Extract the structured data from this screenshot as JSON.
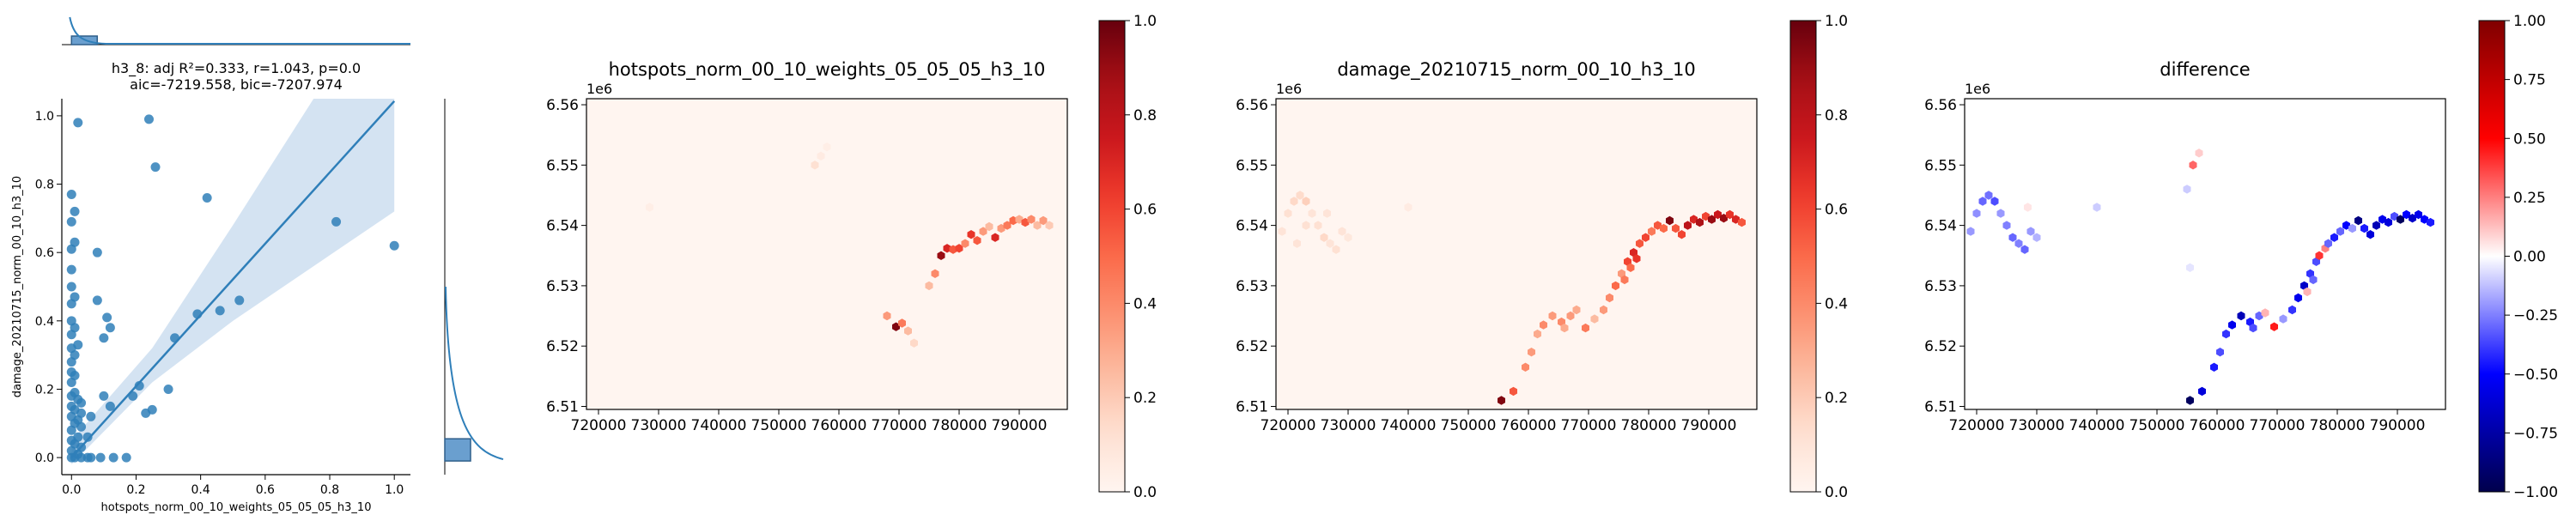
{
  "chart_data": [
    {
      "type": "scatter",
      "title": "h3_8: adj R²=0.333, r=1.043, p=0.0",
      "subtitle": "aic=-7219.558, bic=-7207.974",
      "xlabel": "hotspots_norm_00_10_weights_05_05_05_h3_10",
      "ylabel": "damage_20210715_norm_00_10_h3_10",
      "xlim": [
        -0.03,
        1.05
      ],
      "ylim": [
        -0.05,
        1.05
      ],
      "xticks": [
        "0.0",
        "0.2",
        "0.4",
        "0.6",
        "0.8",
        "1.0"
      ],
      "xtick_values": [
        0,
        0.2,
        0.4,
        0.6,
        0.8,
        1.0
      ],
      "yticks": [
        "0.0",
        "0.2",
        "0.4",
        "0.6",
        "0.8",
        "1.0"
      ],
      "ytick_values": [
        0,
        0.2,
        0.4,
        0.6,
        0.8,
        1.0
      ],
      "color": "#2f7fb9",
      "points": [
        [
          0.0,
          0.0
        ],
        [
          0.0,
          0.02
        ],
        [
          0.0,
          0.05
        ],
        [
          0.0,
          0.08
        ],
        [
          0.0,
          0.12
        ],
        [
          0.0,
          0.15
        ],
        [
          0.0,
          0.18
        ],
        [
          0.0,
          0.22
        ],
        [
          0.0,
          0.25
        ],
        [
          0.0,
          0.28
        ],
        [
          0.0,
          0.32
        ],
        [
          0.0,
          0.36
        ],
        [
          0.0,
          0.4
        ],
        [
          0.0,
          0.45
        ],
        [
          0.0,
          0.5
        ],
        [
          0.0,
          0.55
        ],
        [
          0.0,
          0.61
        ],
        [
          0.0,
          0.69
        ],
        [
          0.0,
          0.77
        ],
        [
          0.01,
          0.0
        ],
        [
          0.01,
          0.04
        ],
        [
          0.01,
          0.1
        ],
        [
          0.01,
          0.14
        ],
        [
          0.01,
          0.19
        ],
        [
          0.01,
          0.24
        ],
        [
          0.01,
          0.3
        ],
        [
          0.01,
          0.38
        ],
        [
          0.01,
          0.47
        ],
        [
          0.01,
          0.63
        ],
        [
          0.01,
          0.72
        ],
        [
          0.02,
          0.01
        ],
        [
          0.02,
          0.06
        ],
        [
          0.02,
          0.11
        ],
        [
          0.02,
          0.17
        ],
        [
          0.02,
          0.33
        ],
        [
          0.02,
          0.98
        ],
        [
          0.03,
          0.0
        ],
        [
          0.03,
          0.03
        ],
        [
          0.03,
          0.09
        ],
        [
          0.03,
          0.13
        ],
        [
          0.03,
          0.16
        ],
        [
          0.05,
          0.0
        ],
        [
          0.05,
          0.06
        ],
        [
          0.06,
          0.12
        ],
        [
          0.06,
          0.0
        ],
        [
          0.08,
          0.6
        ],
        [
          0.08,
          0.46
        ],
        [
          0.09,
          0.0
        ],
        [
          0.1,
          0.35
        ],
        [
          0.1,
          0.18
        ],
        [
          0.11,
          0.41
        ],
        [
          0.12,
          0.38
        ],
        [
          0.12,
          0.15
        ],
        [
          0.13,
          0.0
        ],
        [
          0.17,
          0.0
        ],
        [
          0.19,
          0.18
        ],
        [
          0.21,
          0.21
        ],
        [
          0.23,
          0.13
        ],
        [
          0.24,
          0.99
        ],
        [
          0.25,
          0.14
        ],
        [
          0.26,
          0.85
        ],
        [
          0.3,
          0.2
        ],
        [
          0.32,
          0.35
        ],
        [
          0.39,
          0.42
        ],
        [
          0.42,
          0.76
        ],
        [
          0.46,
          0.43
        ],
        [
          0.52,
          0.46
        ],
        [
          0.82,
          0.69
        ],
        [
          1.0,
          0.62
        ]
      ],
      "regression": {
        "intercept": 0.0,
        "slope": 1.043,
        "x_range": [
          0.0,
          1.0
        ]
      },
      "ci_band": [
        [
          0.0,
          -0.02,
          0.05
        ],
        [
          0.25,
          0.22,
          0.32
        ],
        [
          0.5,
          0.4,
          0.68
        ],
        [
          0.75,
          0.56,
          1.05
        ],
        [
          1.0,
          0.72,
          1.4
        ]
      ],
      "marginal_top": {
        "type": "histogram",
        "note": "distribution of x, concentrated at 0"
      },
      "marginal_right": {
        "type": "histogram",
        "note": "distribution of y, concentrated at 0"
      }
    },
    {
      "type": "heatmap",
      "kind": "hexbin-map",
      "title": "hotspots_norm_00_10_weights_05_05_05_h3_10",
      "offset_label": "1e6",
      "xticks": [
        "720000",
        "730000",
        "740000",
        "750000",
        "760000",
        "770000",
        "780000",
        "790000"
      ],
      "xtick_values": [
        720000,
        730000,
        740000,
        750000,
        760000,
        770000,
        780000,
        790000
      ],
      "yticks": [
        "6.51",
        "6.52",
        "6.53",
        "6.54",
        "6.55",
        "6.56"
      ],
      "ytick_values": [
        6.51,
        6.52,
        6.53,
        6.54,
        6.55,
        6.56
      ],
      "xlim": [
        718000,
        798000
      ],
      "ylim": [
        6.5095,
        6.561
      ],
      "colormap": "Reds",
      "vmin": 0.0,
      "vmax": 1.0,
      "colorbar_ticks": [
        "0.0",
        "0.2",
        "0.4",
        "0.6",
        "0.8",
        "1.0"
      ],
      "colorbar_values": [
        0.0,
        0.2,
        0.4,
        0.6,
        0.8,
        1.0
      ],
      "cells": [
        [
          728500,
          6.543,
          0.04
        ],
        [
          756000,
          6.55,
          0.12
        ],
        [
          757000,
          6.5515,
          0.06
        ],
        [
          758000,
          6.553,
          0.04
        ],
        [
          768000,
          6.525,
          0.35
        ],
        [
          769500,
          6.5232,
          0.95
        ],
        [
          770500,
          6.5238,
          0.45
        ],
        [
          771500,
          6.5225,
          0.25
        ],
        [
          772500,
          6.5205,
          0.15
        ],
        [
          775000,
          6.53,
          0.25
        ],
        [
          776000,
          6.532,
          0.4
        ],
        [
          777000,
          6.535,
          0.9
        ],
        [
          778000,
          6.5362,
          0.7
        ],
        [
          779000,
          6.536,
          0.55
        ],
        [
          780000,
          6.5362,
          0.6
        ],
        [
          781000,
          6.537,
          0.4
        ],
        [
          782000,
          6.5385,
          0.65
        ],
        [
          783000,
          6.5375,
          0.55
        ],
        [
          784000,
          6.539,
          0.35
        ],
        [
          785000,
          6.5398,
          0.25
        ],
        [
          786000,
          6.538,
          0.7
        ],
        [
          787000,
          6.5395,
          0.35
        ],
        [
          788000,
          6.54,
          0.45
        ],
        [
          789000,
          6.5408,
          0.5
        ],
        [
          790000,
          6.541,
          0.3
        ],
        [
          791000,
          6.5405,
          0.55
        ],
        [
          792000,
          6.541,
          0.4
        ],
        [
          793000,
          6.54,
          0.25
        ],
        [
          794000,
          6.5408,
          0.35
        ],
        [
          795000,
          6.54,
          0.2
        ]
      ]
    },
    {
      "type": "heatmap",
      "kind": "hexbin-map",
      "title": "damage_20210715_norm_00_10_h3_10",
      "offset_label": "1e6",
      "xticks": [
        "720000",
        "730000",
        "740000",
        "750000",
        "760000",
        "770000",
        "780000",
        "790000"
      ],
      "xtick_values": [
        720000,
        730000,
        740000,
        750000,
        760000,
        770000,
        780000,
        790000
      ],
      "yticks": [
        "6.51",
        "6.52",
        "6.53",
        "6.54",
        "6.55",
        "6.56"
      ],
      "ytick_values": [
        6.51,
        6.52,
        6.53,
        6.54,
        6.55,
        6.56
      ],
      "xlim": [
        718000,
        798000
      ],
      "ylim": [
        6.5095,
        6.561
      ],
      "colormap": "Reds",
      "vmin": 0.0,
      "vmax": 1.0,
      "colorbar_ticks": [
        "0.0",
        "0.2",
        "0.4",
        "0.6",
        "0.8",
        "1.0"
      ],
      "colorbar_values": [
        0.0,
        0.2,
        0.4,
        0.6,
        0.8,
        1.0
      ],
      "cells": [
        [
          719000,
          6.539,
          0.1
        ],
        [
          720000,
          6.542,
          0.12
        ],
        [
          721000,
          6.544,
          0.15
        ],
        [
          722000,
          6.545,
          0.14
        ],
        [
          723000,
          6.544,
          0.18
        ],
        [
          724000,
          6.542,
          0.1
        ],
        [
          725000,
          6.54,
          0.12
        ],
        [
          726000,
          6.538,
          0.15
        ],
        [
          727000,
          6.537,
          0.1
        ],
        [
          728000,
          6.536,
          0.12
        ],
        [
          729000,
          6.539,
          0.1
        ],
        [
          730000,
          6.538,
          0.08
        ],
        [
          721500,
          6.537,
          0.1
        ],
        [
          723000,
          6.54,
          0.12
        ],
        [
          726500,
          6.542,
          0.1
        ],
        [
          740000,
          6.543,
          0.06
        ],
        [
          755500,
          6.511,
          0.95
        ],
        [
          757500,
          6.5125,
          0.55
        ],
        [
          759500,
          6.5165,
          0.4
        ],
        [
          760500,
          6.519,
          0.35
        ],
        [
          761500,
          6.522,
          0.3
        ],
        [
          762500,
          6.5235,
          0.4
        ],
        [
          764000,
          6.525,
          0.35
        ],
        [
          765500,
          6.524,
          0.4
        ],
        [
          767000,
          6.525,
          0.35
        ],
        [
          769500,
          6.523,
          0.45
        ],
        [
          771000,
          6.5245,
          0.25
        ],
        [
          772500,
          6.526,
          0.35
        ],
        [
          773500,
          6.528,
          0.4
        ],
        [
          774500,
          6.53,
          0.5
        ],
        [
          775500,
          6.532,
          0.35
        ],
        [
          776500,
          6.534,
          0.6
        ],
        [
          777500,
          6.5355,
          0.7
        ],
        [
          778500,
          6.537,
          0.55
        ],
        [
          779500,
          6.538,
          0.6
        ],
        [
          780500,
          6.539,
          0.45
        ],
        [
          781500,
          6.54,
          0.55
        ],
        [
          782500,
          6.5395,
          0.5
        ],
        [
          783500,
          6.5408,
          0.95
        ],
        [
          784500,
          6.5395,
          0.55
        ],
        [
          785500,
          6.5385,
          0.6
        ],
        [
          786500,
          6.54,
          0.8
        ],
        [
          787500,
          6.541,
          0.7
        ],
        [
          788500,
          6.5405,
          0.85
        ],
        [
          789500,
          6.5415,
          0.6
        ],
        [
          790500,
          6.541,
          0.9
        ],
        [
          791500,
          6.5418,
          0.75
        ],
        [
          792500,
          6.5412,
          0.9
        ],
        [
          793500,
          6.5418,
          0.65
        ],
        [
          794500,
          6.541,
          0.7
        ],
        [
          795500,
          6.5405,
          0.55
        ],
        [
          777000,
          6.533,
          0.5
        ],
        [
          776000,
          6.531,
          0.45
        ],
        [
          778000,
          6.5345,
          0.65
        ],
        [
          768000,
          6.526,
          0.3
        ],
        [
          766000,
          6.523,
          0.3
        ]
      ]
    },
    {
      "type": "heatmap",
      "kind": "hexbin-map",
      "title": "difference",
      "offset_label": "1e6",
      "xticks": [
        "720000",
        "730000",
        "740000",
        "750000",
        "760000",
        "770000",
        "780000",
        "790000"
      ],
      "xtick_values": [
        720000,
        730000,
        740000,
        750000,
        760000,
        770000,
        780000,
        790000
      ],
      "yticks": [
        "6.51",
        "6.52",
        "6.53",
        "6.54",
        "6.55",
        "6.56"
      ],
      "ytick_values": [
        6.51,
        6.52,
        6.53,
        6.54,
        6.55,
        6.56
      ],
      "xlim": [
        718000,
        798000
      ],
      "ylim": [
        6.5095,
        6.561
      ],
      "colormap": "seismic",
      "vmin": -1.0,
      "vmax": 1.0,
      "colorbar_ticks": [
        "1.00",
        "0.75",
        "0.50",
        "0.25",
        "0.00",
        "−0.25",
        "−0.50",
        "−0.75",
        "−1.00"
      ],
      "colorbar_values": [
        1.0,
        0.75,
        0.5,
        0.25,
        0.0,
        -0.25,
        -0.5,
        -0.75,
        -1.0
      ],
      "cells": [
        [
          719000,
          6.539,
          -0.2
        ],
        [
          720000,
          6.542,
          -0.22
        ],
        [
          721000,
          6.544,
          -0.3
        ],
        [
          722000,
          6.545,
          -0.28
        ],
        [
          723000,
          6.544,
          -0.35
        ],
        [
          724000,
          6.542,
          -0.2
        ],
        [
          725000,
          6.54,
          -0.25
        ],
        [
          726000,
          6.538,
          -0.3
        ],
        [
          727000,
          6.537,
          -0.25
        ],
        [
          728000,
          6.536,
          -0.3
        ],
        [
          729000,
          6.539,
          -0.2
        ],
        [
          730000,
          6.538,
          -0.15
        ],
        [
          728500,
          6.543,
          0.05
        ],
        [
          740000,
          6.543,
          -0.1
        ],
        [
          756000,
          6.55,
          0.3
        ],
        [
          757000,
          6.552,
          0.1
        ],
        [
          755000,
          6.546,
          -0.1
        ],
        [
          755500,
          6.533,
          -0.05
        ],
        [
          755500,
          6.511,
          -0.95
        ],
        [
          757500,
          6.5125,
          -0.6
        ],
        [
          759500,
          6.5165,
          -0.45
        ],
        [
          760500,
          6.519,
          -0.35
        ],
        [
          761500,
          6.522,
          -0.4
        ],
        [
          762500,
          6.5235,
          -0.55
        ],
        [
          764000,
          6.525,
          -0.7
        ],
        [
          765500,
          6.524,
          -0.45
        ],
        [
          767000,
          6.525,
          -0.3
        ],
        [
          768000,
          6.5255,
          0.15
        ],
        [
          769500,
          6.5232,
          0.45
        ],
        [
          771000,
          6.5245,
          -0.2
        ],
        [
          772500,
          6.526,
          -0.4
        ],
        [
          773500,
          6.528,
          -0.55
        ],
        [
          774500,
          6.53,
          -0.65
        ],
        [
          775500,
          6.532,
          -0.4
        ],
        [
          776500,
          6.534,
          -0.35
        ],
        [
          777000,
          6.535,
          0.4
        ],
        [
          778000,
          6.5362,
          0.25
        ],
        [
          778500,
          6.537,
          -0.3
        ],
        [
          779500,
          6.538,
          -0.45
        ],
        [
          780500,
          6.539,
          -0.3
        ],
        [
          781500,
          6.54,
          -0.5
        ],
        [
          782500,
          6.5395,
          -0.2
        ],
        [
          783500,
          6.5408,
          -0.85
        ],
        [
          784500,
          6.5395,
          -0.45
        ],
        [
          785500,
          6.5385,
          -0.6
        ],
        [
          786500,
          6.54,
          -0.7
        ],
        [
          787500,
          6.541,
          -0.55
        ],
        [
          788500,
          6.5405,
          -0.6
        ],
        [
          789500,
          6.5415,
          -0.35
        ],
        [
          790500,
          6.541,
          -0.95
        ],
        [
          791500,
          6.5418,
          -0.5
        ],
        [
          792500,
          6.5412,
          -0.65
        ],
        [
          793500,
          6.5418,
          -0.55
        ],
        [
          794500,
          6.541,
          -0.5
        ],
        [
          795500,
          6.5405,
          -0.45
        ],
        [
          776000,
          6.531,
          -0.3
        ],
        [
          775000,
          6.529,
          0.15
        ],
        [
          766000,
          6.523,
          -0.35
        ]
      ]
    }
  ]
}
